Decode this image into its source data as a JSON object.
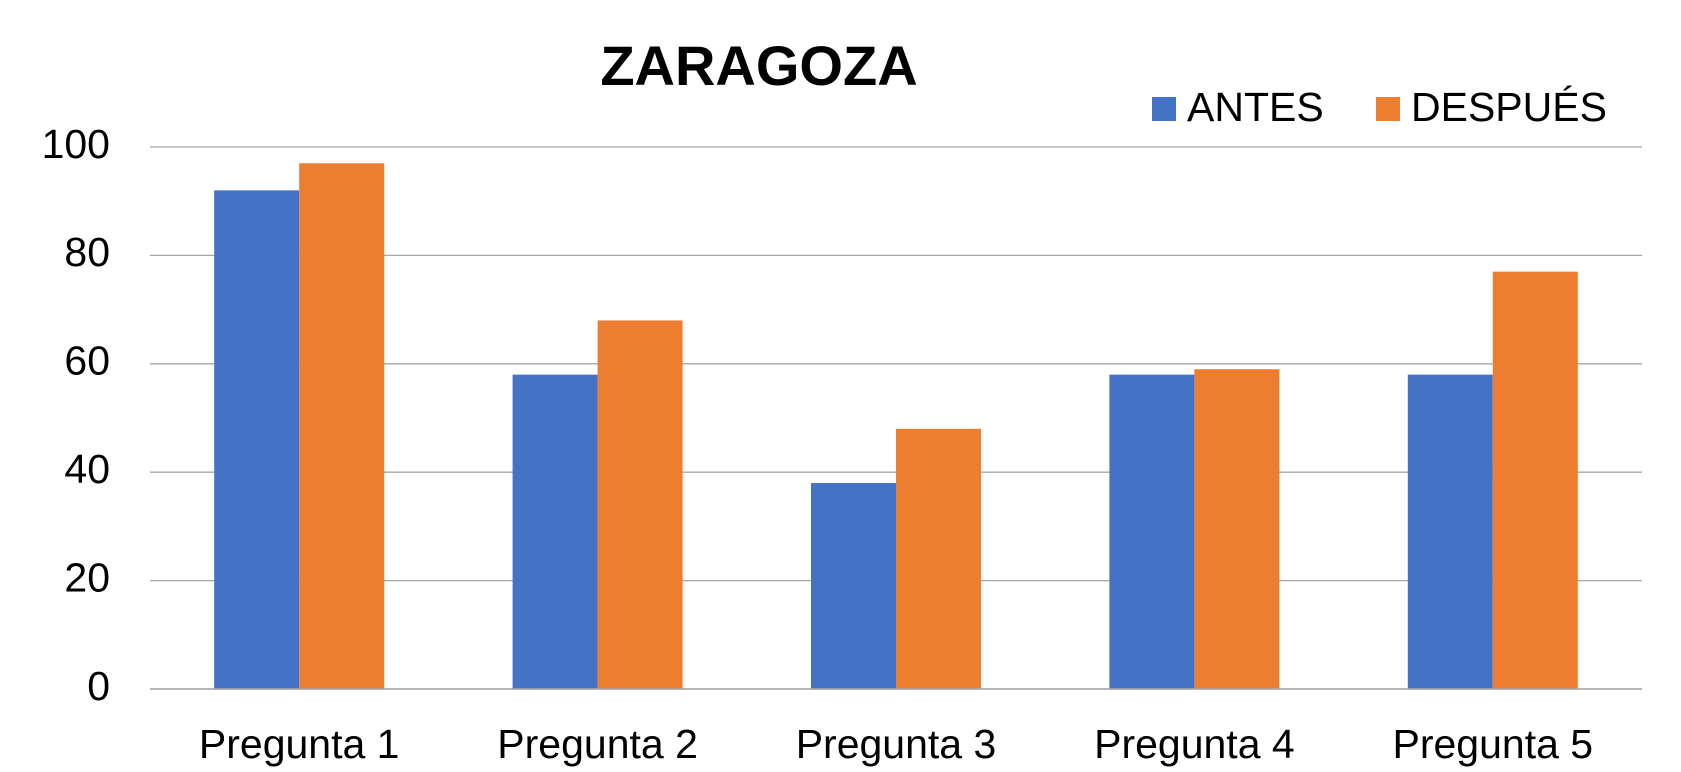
{
  "chart_data": {
    "type": "bar",
    "title": "ZARAGOZA",
    "categories": [
      "Pregunta 1",
      "Pregunta 2",
      "Pregunta 3",
      "Pregunta 4",
      "Pregunta 5"
    ],
    "series": [
      {
        "name": "ANTES",
        "color": "#4472c4",
        "values": [
          92,
          58,
          38,
          58,
          58
        ]
      },
      {
        "name": "DESPUÉS",
        "color": "#ed7d31",
        "values": [
          97,
          68,
          48,
          59,
          77
        ]
      }
    ],
    "ylim": [
      0,
      100
    ],
    "yticks": [
      0,
      20,
      40,
      60,
      80,
      100
    ],
    "grid": true,
    "legend": "top-right"
  }
}
